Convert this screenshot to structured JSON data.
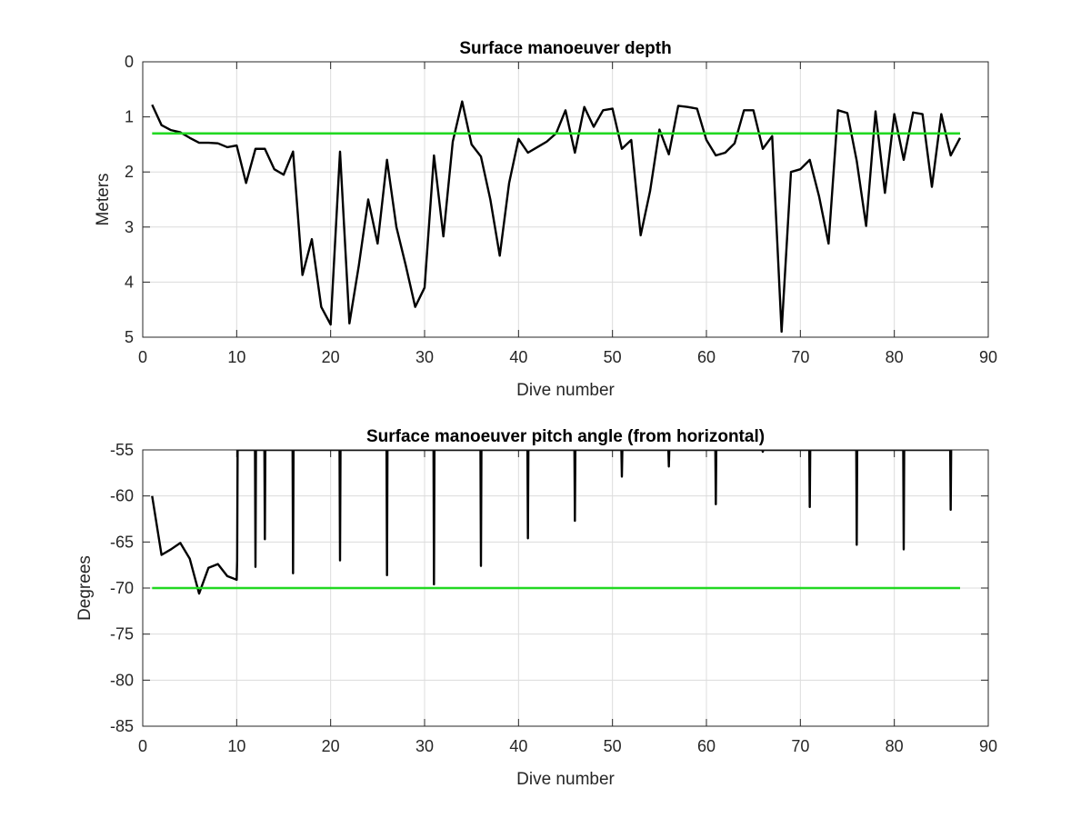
{
  "chart_data": [
    {
      "type": "line",
      "title": "Surface manoeuver depth",
      "xlabel": "Dive number",
      "ylabel": "Meters",
      "xlim": [
        0,
        90
      ],
      "ylim": [
        0,
        5
      ],
      "y_reversed": true,
      "grid": true,
      "xticks": [
        "0",
        "10",
        "20",
        "30",
        "40",
        "50",
        "60",
        "70",
        "80",
        "90"
      ],
      "yticks": [
        "0",
        "1",
        "2",
        "3",
        "4",
        "5"
      ],
      "series": [
        {
          "color": "#000000",
          "x": [
            1,
            2,
            3,
            4,
            5,
            6,
            7,
            8,
            9,
            10,
            11,
            12,
            13,
            14,
            15,
            16,
            17,
            18,
            19,
            20,
            21,
            22,
            23,
            24,
            25,
            26,
            27,
            28,
            29,
            30,
            31,
            32,
            33,
            34,
            35,
            36,
            37,
            38,
            39,
            40,
            41,
            42,
            43,
            44,
            45,
            46,
            47,
            48,
            49,
            50,
            51,
            52,
            53,
            54,
            55,
            56,
            57,
            58,
            59,
            60,
            61,
            62,
            63,
            64,
            65,
            66,
            67,
            68,
            69,
            70,
            71,
            72,
            73,
            74,
            75,
            76,
            77,
            78,
            79,
            80,
            81,
            82,
            83,
            84,
            85,
            86,
            87
          ],
          "y": [
            0.78,
            1.15,
            1.24,
            1.28,
            1.38,
            1.47,
            1.47,
            1.48,
            1.55,
            1.52,
            2.2,
            1.58,
            1.58,
            1.95,
            2.05,
            1.63,
            3.87,
            3.22,
            4.45,
            4.77,
            1.63,
            4.75,
            3.7,
            2.5,
            3.3,
            1.78,
            3.0,
            3.7,
            4.45,
            4.1,
            1.7,
            3.17,
            1.45,
            0.72,
            1.5,
            1.72,
            2.5,
            3.52,
            2.2,
            1.4,
            1.65,
            1.55,
            1.45,
            1.3,
            0.88,
            1.65,
            0.82,
            1.18,
            0.88,
            0.85,
            1.58,
            1.42,
            3.15,
            2.35,
            1.23,
            1.68,
            0.8,
            0.82,
            0.85,
            1.42,
            1.7,
            1.65,
            1.48,
            0.88,
            0.88,
            1.58,
            1.35,
            4.9,
            2.0,
            1.95,
            1.78,
            2.45,
            3.3,
            0.88,
            0.93,
            1.8,
            2.98,
            0.9,
            2.38,
            0.95,
            1.78,
            0.92,
            0.95,
            2.27,
            0.95,
            1.7,
            1.38
          ]
        },
        {
          "color": "#22d822",
          "x": [
            1,
            87
          ],
          "y": [
            1.3,
            1.3
          ]
        }
      ]
    },
    {
      "type": "line",
      "title": "Surface manoeuver pitch angle (from horizontal)",
      "xlabel": "Dive number",
      "ylabel": "Degrees",
      "xlim": [
        0,
        90
      ],
      "ylim": [
        -85,
        -55
      ],
      "grid": true,
      "xticks": [
        "0",
        "10",
        "20",
        "30",
        "40",
        "50",
        "60",
        "70",
        "80",
        "90"
      ],
      "yticks": [
        "-55",
        "-60",
        "-65",
        "-70",
        "-75",
        "-80",
        "-85"
      ],
      "series": [
        {
          "color": "#000000",
          "x": [
            1,
            2,
            3,
            4,
            5,
            6,
            7,
            8,
            9,
            10,
            10.05,
            10.1,
            10.15,
            11.95,
            12.0,
            12.05,
            12.95,
            13.0,
            13.05,
            15.95,
            16.0,
            16.05,
            20.95,
            21.0,
            21.05,
            25.95,
            26.0,
            26.05,
            30.95,
            31.0,
            31.05,
            35.95,
            36.0,
            36.05,
            40.95,
            41.0,
            41.05,
            45.95,
            46.0,
            46.05,
            50.95,
            51.0,
            51.05,
            55.95,
            56.0,
            56.05,
            60.95,
            61.0,
            61.05,
            65.95,
            66.0,
            66.05,
            70.95,
            71.0,
            71.05,
            75.95,
            76.0,
            76.05,
            80.95,
            81.0,
            81.05,
            85.95,
            86.0,
            86.05
          ],
          "y": [
            -60,
            -66.4,
            -65.8,
            -65.1,
            -66.8,
            -70.6,
            -67.8,
            -67.4,
            -68.7,
            -69.1,
            -67,
            -55,
            -55,
            -55,
            -67.7,
            -55,
            -55,
            -64.7,
            -55,
            -55,
            -68.4,
            -55,
            -55,
            -67,
            -55,
            -55,
            -68.6,
            -55,
            -55,
            -69.6,
            -55,
            -55,
            -67.6,
            -55,
            -55,
            -64.6,
            -55,
            -55,
            -62.7,
            -55,
            -55,
            -57.9,
            -55,
            -55,
            -56.8,
            -55,
            -55,
            -60.9,
            -55,
            -55,
            -55.2,
            -55,
            -55,
            -61.2,
            -55,
            -55,
            -65.3,
            -55,
            -55,
            -65.8,
            -55,
            -55,
            -61.5,
            -55
          ]
        },
        {
          "color": "#22d822",
          "x": [
            1,
            87
          ],
          "y": [
            -70,
            -70
          ]
        }
      ]
    }
  ]
}
